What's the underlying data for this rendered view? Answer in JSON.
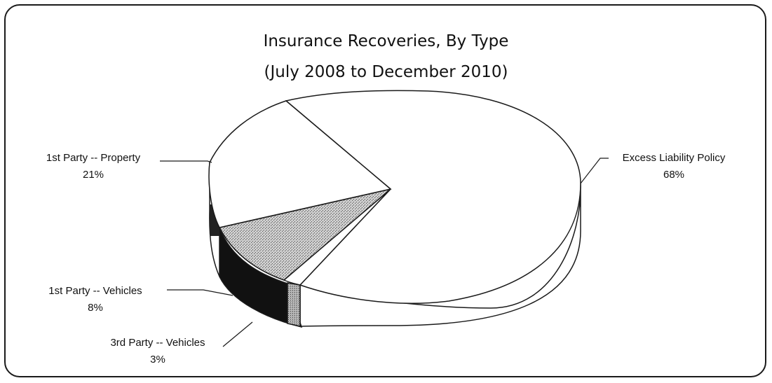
{
  "chart_data": {
    "type": "pie",
    "title": "Insurance Recoveries, By Type",
    "subtitle": "(July 2008 to December 2010)",
    "slices": [
      {
        "label": "Excess Liability Policy",
        "value_pct": "68%",
        "value": 68,
        "color": "#ffffff"
      },
      {
        "label": "3rd Party -- Vehicles",
        "value_pct": "3%",
        "value": 3,
        "color": "#ffffff"
      },
      {
        "label": "1st Party -- Vehicles",
        "value_pct": "8%",
        "value": 8,
        "color": "#9a9a9a"
      },
      {
        "label": "1st Party -- Property",
        "value_pct": "21%",
        "value": 21,
        "color": "#ffffff"
      }
    ],
    "style": "3d-pie",
    "legend": "none"
  }
}
